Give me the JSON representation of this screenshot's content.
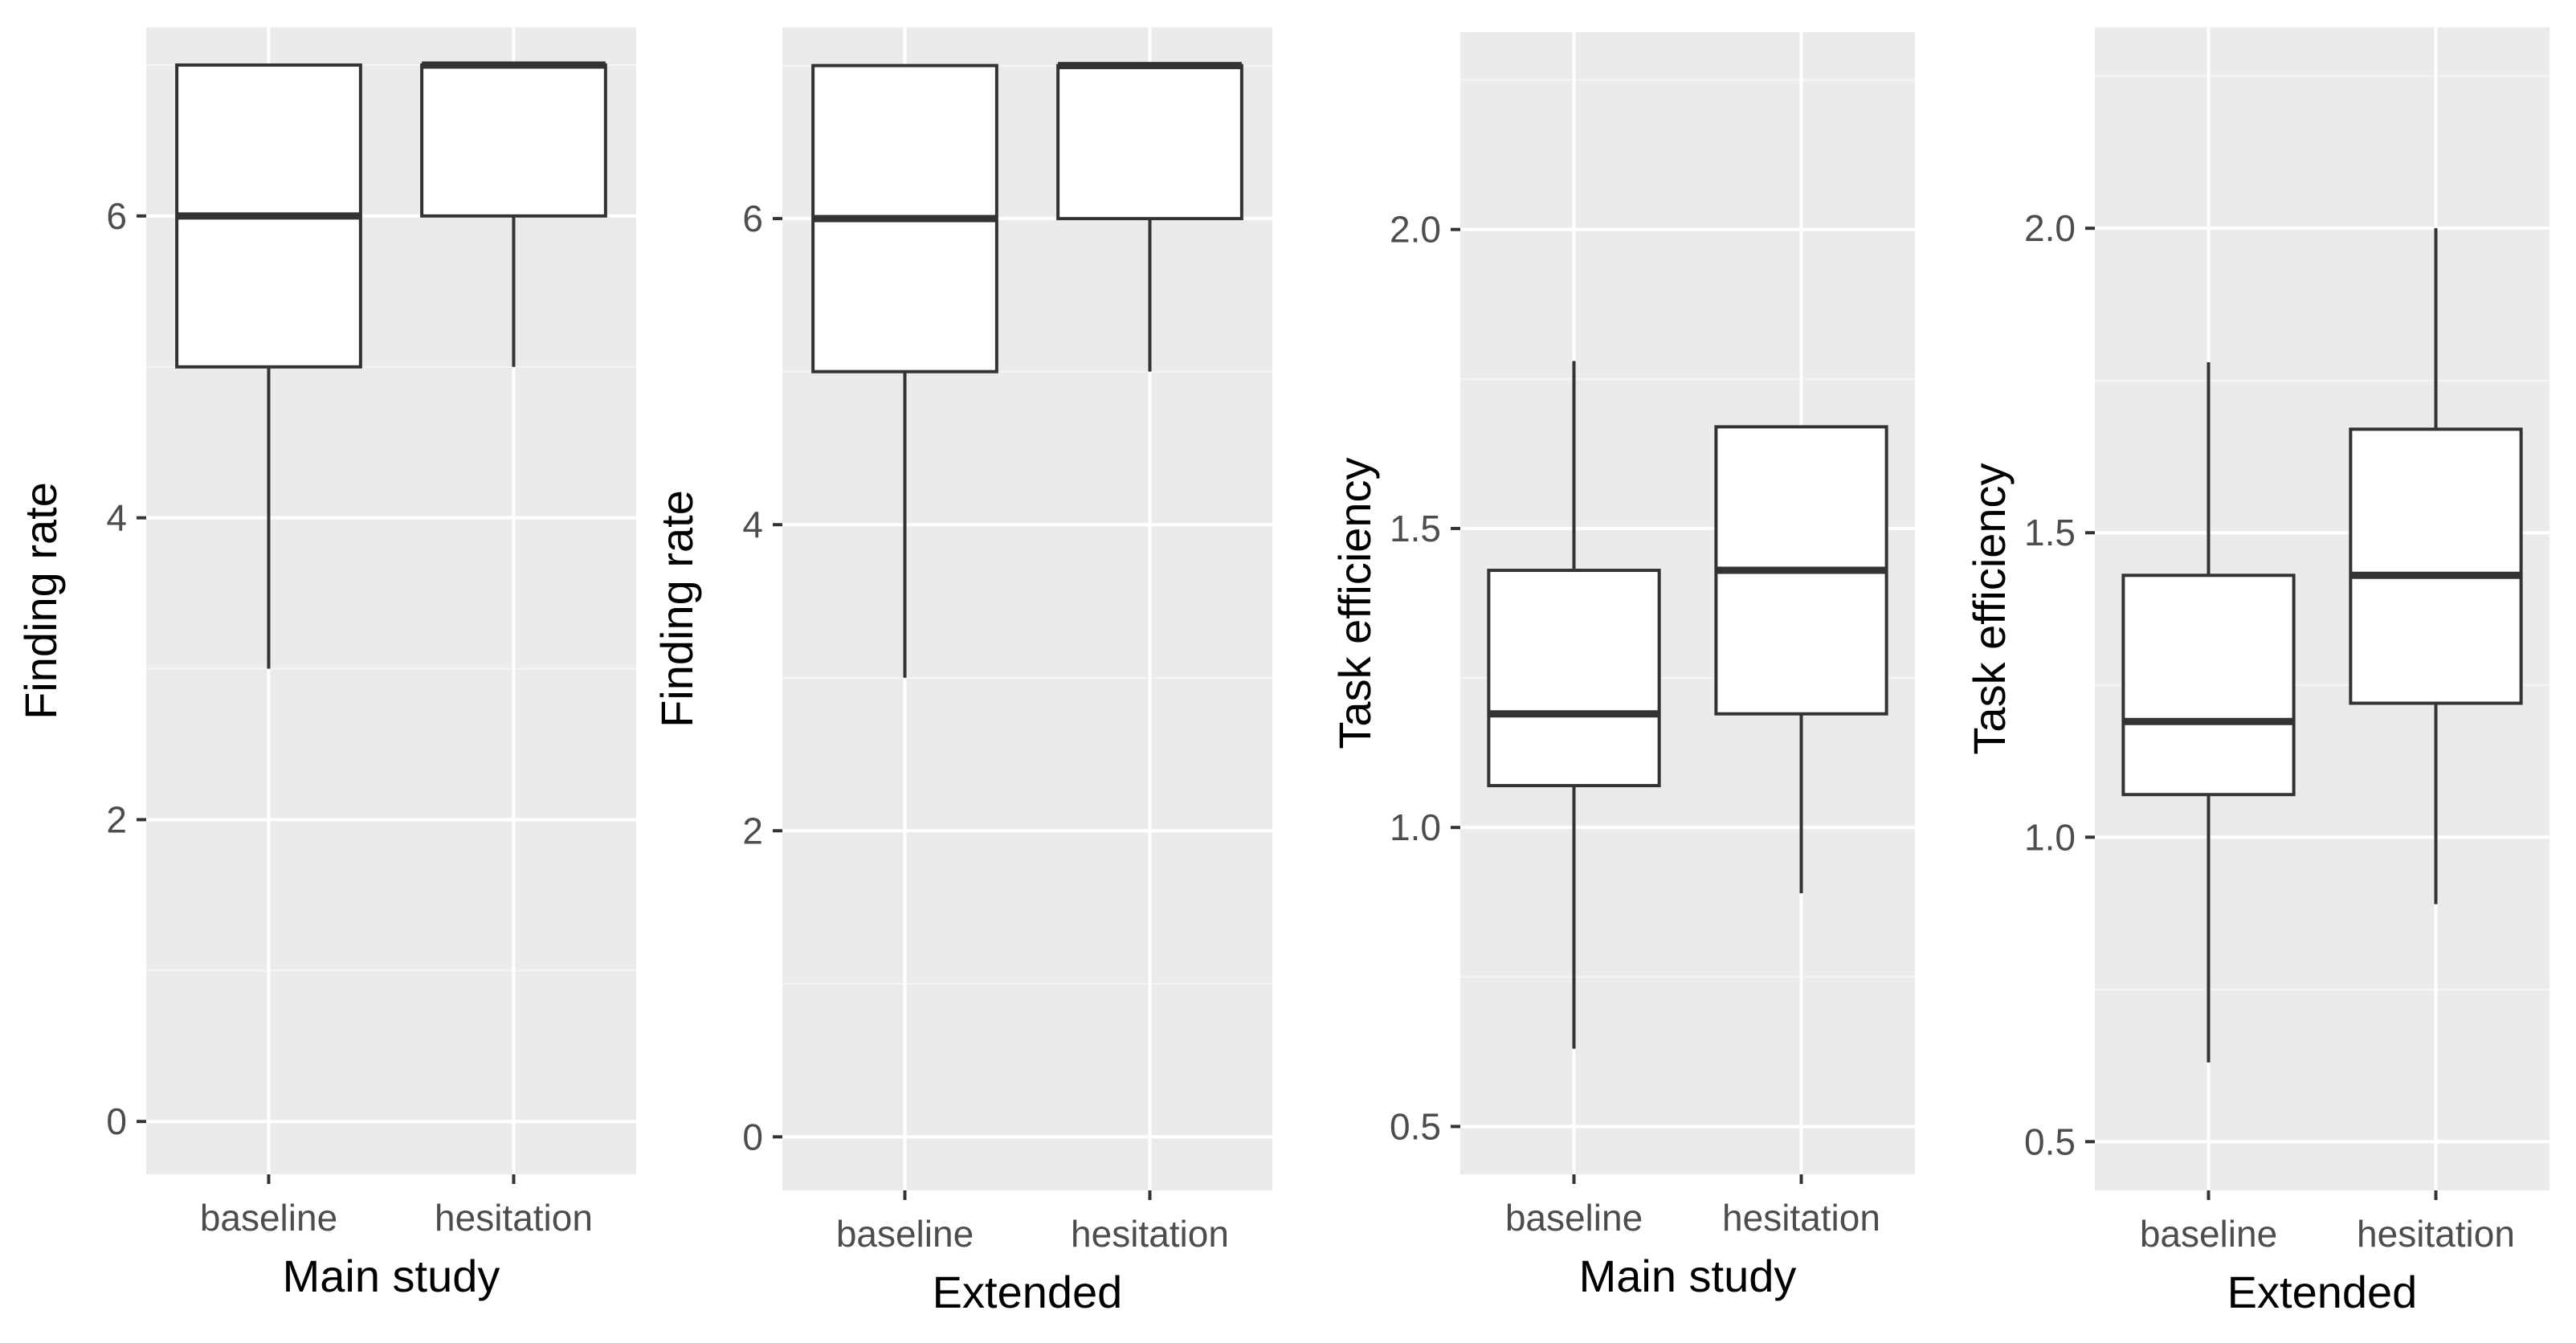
{
  "chart_data": [
    {
      "type": "boxplot",
      "title": "",
      "xlabel": "Main study",
      "ylabel": "Finding rate",
      "categories": [
        "baseline",
        "hesitation"
      ],
      "ylim": [
        -0.35,
        7.25
      ],
      "yticks": [
        0,
        2,
        4,
        6
      ],
      "ytick_labels": [
        "0",
        "2",
        "4",
        "6"
      ],
      "boxes": [
        {
          "category": "baseline",
          "whisker_low": 3,
          "q1": 5,
          "median": 6,
          "q3": 7,
          "whisker_high": 7
        },
        {
          "category": "hesitation",
          "whisker_low": 5,
          "q1": 6,
          "median": 7,
          "q3": 7,
          "whisker_high": 7
        }
      ],
      "grid": true
    },
    {
      "type": "boxplot",
      "title": "",
      "xlabel": "Extended",
      "ylabel": "Finding rate",
      "categories": [
        "baseline",
        "hesitation"
      ],
      "ylim": [
        -0.35,
        7.25
      ],
      "yticks": [
        0,
        2,
        4,
        6
      ],
      "ytick_labels": [
        "0",
        "2",
        "4",
        "6"
      ],
      "boxes": [
        {
          "category": "baseline",
          "whisker_low": 3,
          "q1": 5,
          "median": 6,
          "q3": 7,
          "whisker_high": 7
        },
        {
          "category": "hesitation",
          "whisker_low": 5,
          "q1": 6,
          "median": 7,
          "q3": 7,
          "whisker_high": 7
        }
      ],
      "grid": true
    },
    {
      "type": "boxplot",
      "title": "",
      "xlabel": "Main study",
      "ylabel": "Task efficiency",
      "categories": [
        "baseline",
        "hesitation"
      ],
      "ylim": [
        0.42,
        2.33
      ],
      "yticks": [
        0.5,
        1.0,
        1.5,
        2.0
      ],
      "ytick_labels": [
        "0.5",
        "1.0",
        "1.5",
        "2.0"
      ],
      "boxes": [
        {
          "category": "baseline",
          "whisker_low": 0.63,
          "q1": 1.07,
          "median": 1.19,
          "q3": 1.43,
          "whisker_high": 1.78
        },
        {
          "category": "hesitation",
          "whisker_low": 0.89,
          "q1": 1.19,
          "median": 1.43,
          "q3": 1.67,
          "whisker_high": 1.67
        }
      ],
      "grid": true
    },
    {
      "type": "boxplot",
      "title": "",
      "xlabel": "Extended",
      "ylabel": "Task efficiency",
      "categories": [
        "baseline",
        "hesitation"
      ],
      "ylim": [
        0.42,
        2.33
      ],
      "yticks": [
        0.5,
        1.0,
        1.5,
        2.0
      ],
      "ytick_labels": [
        "0.5",
        "1.0",
        "1.5",
        "2.0"
      ],
      "boxes": [
        {
          "category": "baseline",
          "whisker_low": 0.63,
          "q1": 1.07,
          "median": 1.19,
          "q3": 1.43,
          "whisker_high": 1.78
        },
        {
          "category": "hesitation",
          "whisker_low": 0.89,
          "q1": 1.22,
          "median": 1.43,
          "q3": 1.67,
          "whisker_high": 2.0
        }
      ],
      "grid": true
    }
  ],
  "colors": {
    "panel_bg": "#ebebeb",
    "grid_major": "#ffffff",
    "grid_minor": "#f5f5f5",
    "box_fill": "#ffffff",
    "box_line": "#333333",
    "tick_text": "#4d4d4d",
    "tick_mark": "#333333",
    "title_text": "#000000"
  }
}
